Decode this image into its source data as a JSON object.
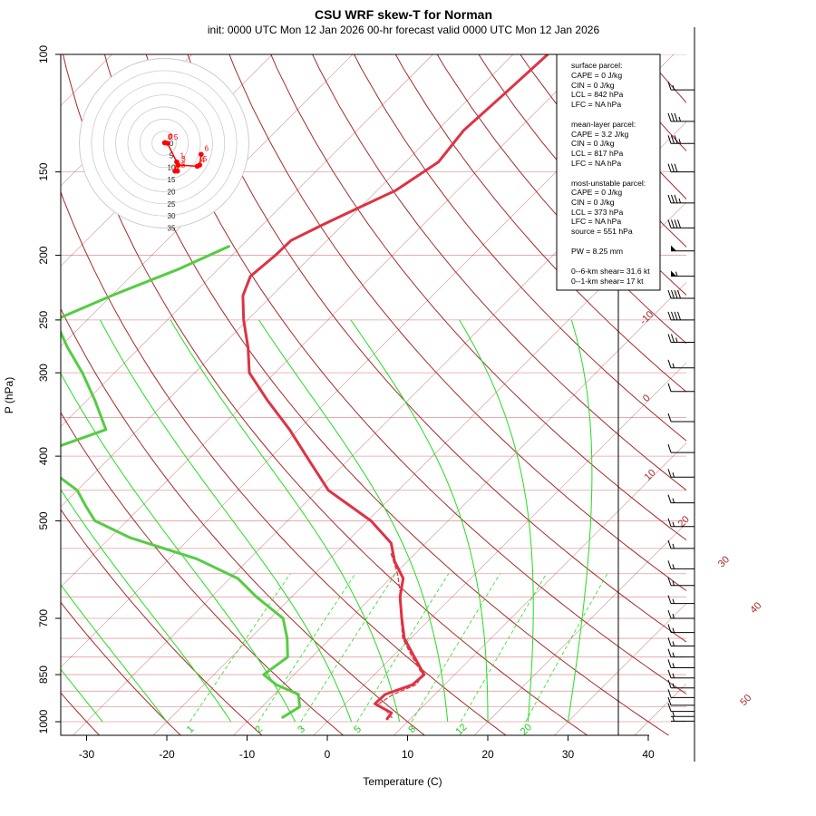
{
  "title": "CSU WRF skew-T for Norman",
  "subtitle": "init: 0000 UTC Mon 12 Jan 2026     00-hr forecast valid 0000 UTC Mon 12 Jan 2026",
  "colors": {
    "temperature": "#dd3344",
    "dewpoint": "#55cc44",
    "parcel": "#dd3344",
    "isotherm": "#a52a2a",
    "isobar": "#e0a0a0",
    "dry_adiabat": "#a52a2a",
    "moist_adiabat": "#22dd22",
    "mixing_ratio": "#22dd22",
    "hodograph": "#ff0000",
    "barb": "#000000"
  },
  "stats": {
    "surface_header": "surface parcel:",
    "surface_cape": "CAPE = 0 J/kg",
    "surface_cin": "CIN = 0 J/kg",
    "surface_lcl": "LCL = 842 hPa",
    "surface_lfc": "LFC = NA hPa",
    "ml_header": "mean-layer parcel:",
    "ml_cape": "CAPE = 3.2 J/kg",
    "ml_cin": "CIN = 0 J/kg",
    "ml_lcl": "LCL = 817 hPa",
    "ml_lfc": "LFC = NA hPa",
    "mu_header": "most-unstable parcel:",
    "mu_cape": "CAPE = 0 J/kg",
    "mu_cin": "CIN = 0 J/kg",
    "mu_lcl": "LCL = 373 hPa",
    "mu_lfc": "LFC = NA hPa",
    "mu_source": "source = 551 hPa",
    "pw": "PW =  8.25 mm",
    "shear06": "0--6-km shear= 31.6 kt",
    "shear01": "0--1-km shear= 17 kt"
  },
  "chart_data": {
    "type": "line",
    "subtype": "skew-T log-P diagram",
    "title": "CSU WRF skew-T for Norman",
    "subtitle": "init: 0000 UTC Mon 12 Jan 2026     00-hr forecast valid 0000 UTC Mon 12 Jan 2026",
    "xlabel": "Temperature (C)",
    "ylabel": "P (hPa)",
    "xlim": [
      -33,
      44
    ],
    "ylim": [
      1050,
      100
    ],
    "y_scale": "log",
    "x_ticks": [
      -30,
      -20,
      -10,
      0,
      10,
      20,
      30,
      40
    ],
    "x_tick_labels": [
      "-30",
      "-20",
      "-10",
      "0",
      "10",
      "20",
      "30",
      "40"
    ],
    "y_ticks": [
      100,
      150,
      200,
      250,
      300,
      400,
      500,
      700,
      850,
      1000
    ],
    "y_tick_labels": [
      "100",
      "150",
      "200",
      "250",
      "300",
      "400",
      "500",
      "700",
      "850",
      "1000"
    ],
    "isotherm_labels": [
      {
        "t": -10,
        "text": "-10"
      },
      {
        "t": 0,
        "text": "0"
      },
      {
        "t": 10,
        "text": "10"
      },
      {
        "t": 20,
        "text": "20"
      },
      {
        "t": 30,
        "text": "30"
      },
      {
        "t": 40,
        "text": "40"
      },
      {
        "t": 50,
        "text": "50"
      }
    ],
    "mixing_ratio_labels": [
      "1",
      "2",
      "3",
      "5",
      "8",
      "12",
      "20"
    ],
    "series": [
      {
        "name": "temperature",
        "p": [
          100,
          115,
          130,
          145,
          160,
          170,
          180,
          190,
          200,
          215,
          230,
          250,
          275,
          300,
          330,
          365,
          400,
          450,
          500,
          540,
          575,
          610,
          650,
          700,
          750,
          800,
          850,
          880,
          910,
          940,
          970,
          990
        ],
        "t": [
          -55.7,
          -56.2,
          -56.7,
          -55.9,
          -57.7,
          -60.2,
          -62.5,
          -64.5,
          -64.6,
          -65.1,
          -63.6,
          -60.5,
          -56.5,
          -53.2,
          -47.5,
          -41.1,
          -35.7,
          -28.7,
          -19.6,
          -14.3,
          -11.6,
          -8.4,
          -6.5,
          -3.6,
          -0.8,
          2.8,
          6.2,
          6.0,
          3.8,
          3.7,
          6.9,
          7.1
        ]
      },
      {
        "name": "dewpoint",
        "p": [
          194,
          210,
          230,
          250,
          275,
          300,
          330,
          365,
          400,
          450,
          475,
          500,
          530,
          570,
          610,
          650,
          700,
          750,
          800,
          850,
          880,
          910,
          950,
          985
        ],
        "td": [
          -71.5,
          -75.0,
          -80.0,
          -84.0,
          -79.0,
          -74.0,
          -69.0,
          -64.0,
          -70.0,
          -60.0,
          -57.0,
          -54.0,
          -47.5,
          -36.6,
          -29.0,
          -24.4,
          -18.4,
          -15.4,
          -13.0,
          -13.8,
          -11.0,
          -7.0,
          -5.3,
          -6.1
        ]
      },
      {
        "name": "parcel",
        "p": [
          560,
          600,
          650,
          700,
          750,
          800,
          850,
          880,
          910,
          940,
          970,
          990
        ],
        "t": [
          -13.0,
          -9.7,
          -6.4,
          -3.7,
          -1.0,
          2.5,
          6.0,
          6.5,
          4.8,
          4.2,
          6.5,
          7.8
        ]
      }
    ],
    "wind_barbs": [
      {
        "p": 113,
        "speed": 15
      },
      {
        "p": 126,
        "speed": 35
      },
      {
        "p": 136,
        "speed": 35
      },
      {
        "p": 150,
        "speed": 30
      },
      {
        "p": 167,
        "speed": 35
      },
      {
        "p": 182,
        "speed": 40
      },
      {
        "p": 197,
        "speed": 50
      },
      {
        "p": 215,
        "speed": 55
      },
      {
        "p": 232,
        "speed": 40
      },
      {
        "p": 250,
        "speed": 40
      },
      {
        "p": 270,
        "speed": 25
      },
      {
        "p": 295,
        "speed": 15
      },
      {
        "p": 320,
        "speed": 10
      },
      {
        "p": 355,
        "speed": 10
      },
      {
        "p": 395,
        "speed": 10
      },
      {
        "p": 430,
        "speed": 15
      },
      {
        "p": 470,
        "speed": 15
      },
      {
        "p": 510,
        "speed": 15
      },
      {
        "p": 550,
        "speed": 15
      },
      {
        "p": 590,
        "speed": 15
      },
      {
        "p": 625,
        "speed": 15
      },
      {
        "p": 665,
        "speed": 15
      },
      {
        "p": 700,
        "speed": 15
      },
      {
        "p": 735,
        "speed": 15
      },
      {
        "p": 770,
        "speed": 15
      },
      {
        "p": 800,
        "speed": 15
      },
      {
        "p": 830,
        "speed": 15
      },
      {
        "p": 860,
        "speed": 15
      },
      {
        "p": 890,
        "speed": 15
      },
      {
        "p": 920,
        "speed": 10
      },
      {
        "p": 945,
        "speed": 10
      },
      {
        "p": 965,
        "speed": 10
      },
      {
        "p": 982,
        "speed": 5
      },
      {
        "p": 998,
        "speed": 5
      }
    ],
    "hodograph": {
      "ring_labels": [
        "0",
        "5",
        "10",
        "15",
        "20",
        "25",
        "30",
        "35"
      ],
      "points": [
        {
          "u": 0.2,
          "v": 0.2,
          "label": "0"
        },
        {
          "u": 0.5,
          "v": 0.2,
          "label": "0"
        },
        {
          "u": 1.4,
          "v": 0.0,
          "label": "0.5"
        },
        {
          "u": 5.2,
          "v": -7.7,
          "label": "1"
        },
        {
          "u": 4.5,
          "v": -11.5,
          "label": "1.5"
        },
        {
          "u": 5.5,
          "v": -11.5,
          "label": "2"
        },
        {
          "u": 5.8,
          "v": -9.0,
          "label": "3"
        },
        {
          "u": 13.7,
          "v": -9.5,
          "label": "4"
        },
        {
          "u": 14.7,
          "v": -9.0,
          "label": "5"
        },
        {
          "u": 15.3,
          "v": -4.6,
          "label": "6"
        }
      ]
    }
  }
}
